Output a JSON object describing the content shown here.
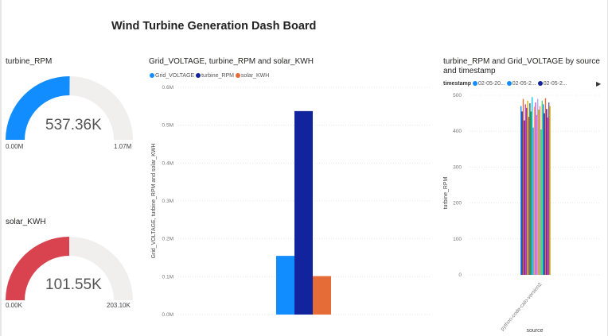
{
  "dashboard": {
    "title": "Wind Turbine Generation Dash Board"
  },
  "gauge_rpm": {
    "title": "turbine_RPM",
    "value_label": "537.36K",
    "min_label": "0.00M",
    "max_label": "1.07M",
    "value": 537360,
    "max": 1070000,
    "fill_color": "#118DFF",
    "track_color": "#F0EFEE"
  },
  "gauge_kwh": {
    "title": "solar_KWH",
    "value_label": "101.55K",
    "min_label": "0.00K",
    "max_label": "203.10K",
    "value": 101550,
    "max": 203100,
    "fill_color": "#D9434F",
    "track_color": "#F0EFEE"
  },
  "chart_data": [
    {
      "type": "bar",
      "title": "Grid_VOLTAGE, turbine_RPM and solar_KWH",
      "ylabel": "Grid_VOLTAGE, turbine_RPM and solar_KWH",
      "xlabel": "",
      "ylim": [
        0,
        600000
      ],
      "yticks": [
        "0.0M",
        "0.1M",
        "0.2M",
        "0.3M",
        "0.4M",
        "0.5M",
        "0.6M"
      ],
      "categories": [
        ""
      ],
      "series": [
        {
          "name": "Grid_VOLTAGE",
          "values": [
            155000
          ],
          "color": "#118DFF"
        },
        {
          "name": "turbine_RPM",
          "values": [
            537360
          ],
          "color": "#12239E"
        },
        {
          "name": "solar_KWH",
          "values": [
            101550
          ],
          "color": "#E66C37"
        }
      ],
      "grid": true,
      "legend_position": "top-left"
    },
    {
      "type": "bar",
      "title": "turbine_RPM and Grid_VOLTAGE by source and timestamp",
      "ylabel": "turbine_RPM",
      "xlabel": "source",
      "ylim": [
        0,
        500
      ],
      "yticks": [
        "0",
        "100",
        "200",
        "300",
        "400",
        "500"
      ],
      "categories": [
        "python-code-calo-version2"
      ],
      "legend_title": "timestamp",
      "legend_items": [
        "02-05-20...",
        "02-05-2...",
        "02-05-2..."
      ],
      "series_values": [
        470,
        455,
        490,
        430,
        475,
        465,
        485,
        440,
        478,
        455,
        495,
        410,
        468,
        480,
        445,
        490,
        460,
        470,
        405,
        485,
        475,
        450,
        492,
        462,
        438,
        480,
        470
      ],
      "series_colors": [
        "#118DFF",
        "#12239E",
        "#E66C37",
        "#6B007B",
        "#E044A7",
        "#744EC2",
        "#D9B300",
        "#D64550",
        "#197278",
        "#1AAB40",
        "#15C6F4",
        "#4092FF",
        "#FFA058",
        "#BE5DC9",
        "#F472D0",
        "#B5A1FF",
        "#C4A200",
        "#FF8080",
        "#00DBBC",
        "#5BD667",
        "#118DFF",
        "#12239E",
        "#E66C37",
        "#6B007B",
        "#E044A7",
        "#744EC2",
        "#D9B300"
      ],
      "grid": true,
      "legend_position": "top"
    }
  ]
}
